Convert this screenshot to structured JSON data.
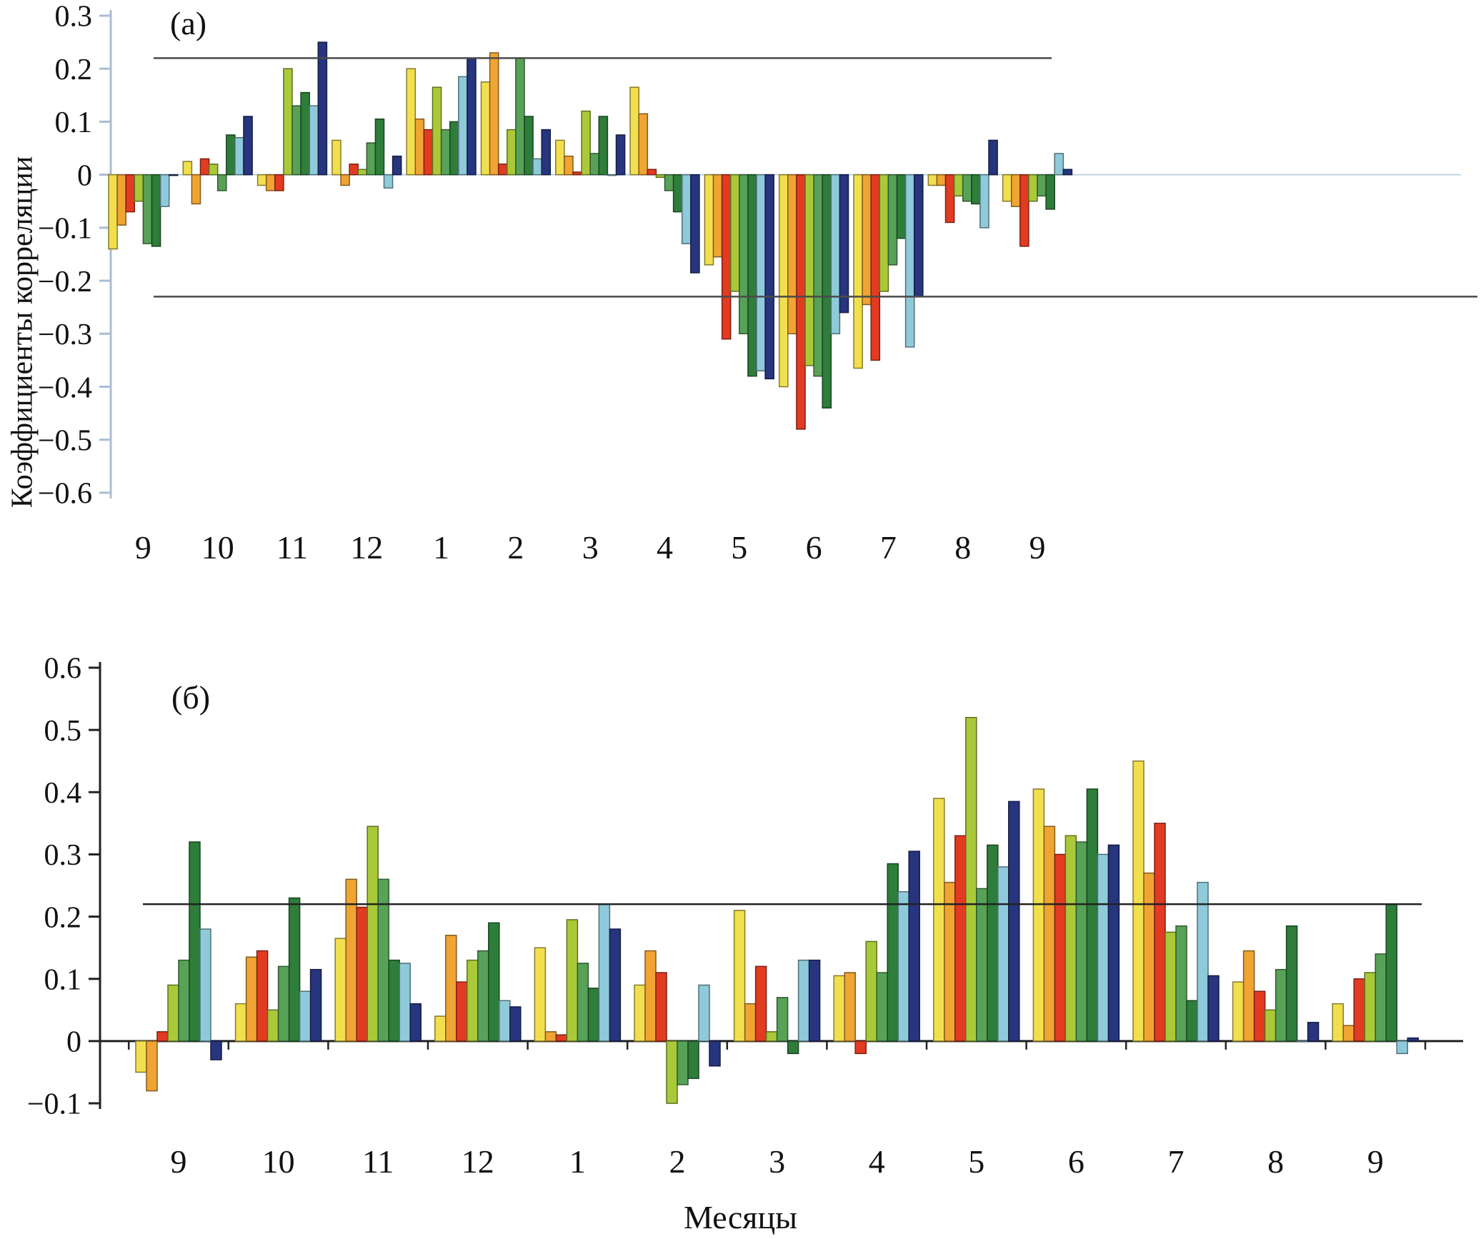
{
  "chart_data": [
    {
      "type": "bar",
      "panel_label": "(а)",
      "ylabel": "Коэффициенты корреляции",
      "xlabel": "",
      "ylim": [
        -0.6,
        0.3
      ],
      "yticks": [
        0.3,
        0.2,
        0.1,
        0,
        -0.1,
        -0.2,
        -0.3,
        -0.4,
        -0.5,
        -0.6
      ],
      "categories": [
        "9",
        "10",
        "11",
        "12",
        "1",
        "2",
        "3",
        "4",
        "5",
        "6",
        "7",
        "8",
        "9"
      ],
      "reference_lines": [
        0.22,
        -0.23
      ],
      "grid": false,
      "legend": "none",
      "series": [
        {
          "name": "yellow",
          "color": "#f2df4e",
          "values": [
            -0.14,
            0.025,
            -0.02,
            0.065,
            0.2,
            0.175,
            0.065,
            0.165,
            -0.17,
            -0.4,
            -0.365,
            -0.02,
            -0.05
          ]
        },
        {
          "name": "orange",
          "color": "#f0a433",
          "values": [
            -0.095,
            -0.055,
            -0.03,
            -0.02,
            0.105,
            0.23,
            0.035,
            0.115,
            -0.155,
            -0.3,
            -0.245,
            -0.02,
            -0.06
          ]
        },
        {
          "name": "red",
          "color": "#e23b22",
          "values": [
            -0.07,
            0.03,
            -0.03,
            0.02,
            0.085,
            0.02,
            0.005,
            0.01,
            -0.31,
            -0.48,
            -0.35,
            -0.09,
            -0.135
          ]
        },
        {
          "name": "yellow-green",
          "color": "#aac939",
          "values": [
            -0.05,
            0.02,
            0.2,
            0.01,
            0.165,
            0.085,
            0.12,
            -0.005,
            -0.22,
            -0.36,
            -0.22,
            -0.04,
            -0.05
          ]
        },
        {
          "name": "green",
          "color": "#57a257",
          "values": [
            -0.13,
            -0.03,
            0.13,
            0.06,
            0.085,
            0.22,
            0.04,
            -0.03,
            -0.3,
            -0.38,
            -0.17,
            -0.05,
            -0.04
          ]
        },
        {
          "name": "dark-green",
          "color": "#2e7d3a",
          "values": [
            -0.135,
            0.075,
            0.155,
            0.105,
            0.1,
            0.11,
            0.11,
            -0.07,
            -0.38,
            -0.44,
            -0.12,
            -0.055,
            -0.065
          ]
        },
        {
          "name": "light-blue",
          "color": "#8fcada",
          "values": [
            -0.06,
            0.07,
            0.13,
            -0.025,
            0.185,
            0.03,
            0.0,
            -0.13,
            -0.37,
            -0.3,
            -0.325,
            -0.1,
            0.04
          ]
        },
        {
          "name": "dark-blue",
          "color": "#27357e",
          "values": [
            0.0,
            0.11,
            0.25,
            0.035,
            0.22,
            0.085,
            0.075,
            -0.185,
            -0.385,
            -0.26,
            -0.23,
            0.065,
            0.01
          ]
        }
      ]
    },
    {
      "type": "bar",
      "panel_label": "(б)",
      "ylabel": "",
      "xlabel": "Месяцы",
      "ylim": [
        -0.1,
        0.6
      ],
      "yticks": [
        0.6,
        0.5,
        0.4,
        0.3,
        0.2,
        0.1,
        0,
        -0.1
      ],
      "categories": [
        "9",
        "10",
        "11",
        "12",
        "1",
        "2",
        "3",
        "4",
        "5",
        "6",
        "7",
        "8",
        "9"
      ],
      "reference_lines": [
        0.22
      ],
      "grid": false,
      "legend": "none",
      "series": [
        {
          "name": "yellow",
          "color": "#f2df4e",
          "values": [
            -0.05,
            0.06,
            0.165,
            0.04,
            0.15,
            0.09,
            0.21,
            0.105,
            0.39,
            0.405,
            0.45,
            0.095,
            0.06
          ]
        },
        {
          "name": "orange",
          "color": "#f0a433",
          "values": [
            -0.08,
            0.135,
            0.26,
            0.17,
            0.015,
            0.145,
            0.06,
            0.11,
            0.255,
            0.345,
            0.27,
            0.145,
            0.025
          ]
        },
        {
          "name": "red",
          "color": "#e23b22",
          "values": [
            0.015,
            0.145,
            0.215,
            0.095,
            0.01,
            0.11,
            0.12,
            -0.02,
            0.33,
            0.3,
            0.35,
            0.08,
            0.1
          ]
        },
        {
          "name": "yellow-green",
          "color": "#aac939",
          "values": [
            0.09,
            0.05,
            0.345,
            0.13,
            0.195,
            -0.1,
            0.015,
            0.16,
            0.52,
            0.33,
            0.175,
            0.05,
            0.11
          ]
        },
        {
          "name": "green",
          "color": "#57a257",
          "values": [
            0.13,
            0.12,
            0.26,
            0.145,
            0.125,
            -0.07,
            0.07,
            0.11,
            0.245,
            0.32,
            0.185,
            0.115,
            0.14
          ]
        },
        {
          "name": "dark-green",
          "color": "#2e7d3a",
          "values": [
            0.32,
            0.23,
            0.13,
            0.19,
            0.085,
            -0.06,
            -0.02,
            0.285,
            0.315,
            0.405,
            0.065,
            0.185,
            0.22
          ]
        },
        {
          "name": "light-blue",
          "color": "#8fcada",
          "values": [
            0.18,
            0.08,
            0.125,
            0.065,
            0.22,
            0.09,
            0.13,
            0.24,
            0.28,
            0.3,
            0.255,
            0.0,
            -0.02
          ]
        },
        {
          "name": "dark-blue",
          "color": "#27357e",
          "values": [
            -0.03,
            0.115,
            0.06,
            0.055,
            0.18,
            -0.04,
            0.13,
            0.305,
            0.385,
            0.315,
            0.105,
            0.03,
            0.005
          ]
        }
      ]
    }
  ]
}
